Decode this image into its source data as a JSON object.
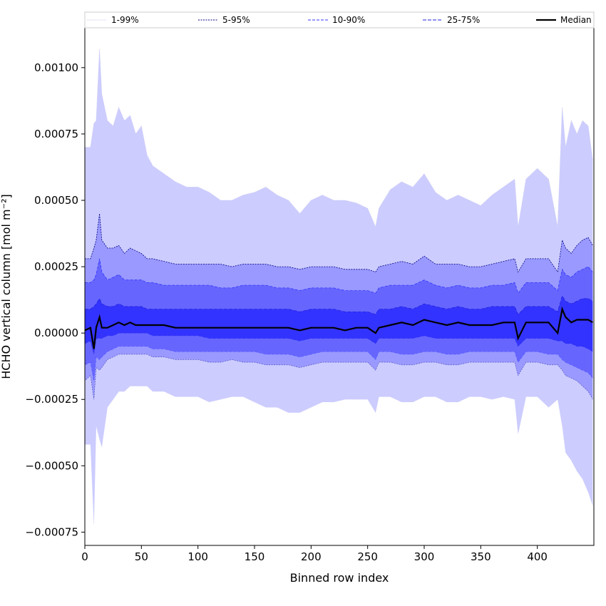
{
  "chart_data": {
    "type": "area",
    "title": "",
    "xlabel": "Binned row index",
    "ylabel": "HCHO vertical column [mol m⁻²]",
    "xlim": [
      0,
      450
    ],
    "ylim": [
      -0.0008,
      0.00115
    ],
    "x_ticks": [
      0,
      50,
      100,
      150,
      200,
      250,
      300,
      350,
      400
    ],
    "x_tick_labels": [
      "0",
      "50",
      "100",
      "150",
      "200",
      "250",
      "300",
      "350",
      "400"
    ],
    "y_ticks": [
      -0.00075,
      -0.0005,
      -0.00025,
      0.0,
      0.00025,
      0.0005,
      0.00075,
      0.001
    ],
    "y_tick_labels": [
      "−0.00075",
      "−0.00050",
      "−0.00025",
      "0.00000",
      "0.00025",
      "0.00050",
      "0.00075",
      "0.00100"
    ],
    "grid": false,
    "legend": {
      "placement": "top",
      "entries": [
        "1-99%",
        "5-95%",
        "10-90%",
        "25-75%",
        "Median"
      ]
    },
    "x": [
      0,
      5,
      8,
      10,
      13,
      15,
      20,
      25,
      30,
      35,
      40,
      45,
      50,
      55,
      60,
      70,
      80,
      90,
      100,
      110,
      120,
      130,
      140,
      150,
      160,
      170,
      180,
      190,
      200,
      210,
      220,
      230,
      240,
      250,
      257,
      260,
      270,
      280,
      290,
      300,
      310,
      320,
      330,
      340,
      350,
      360,
      370,
      380,
      383,
      390,
      400,
      410,
      418,
      422,
      425,
      430,
      435,
      440,
      445,
      449
    ],
    "series": [
      {
        "name": "1-99%",
        "upper": [
          0.0007,
          0.0007,
          0.00079,
          0.0008,
          0.00107,
          0.0009,
          0.0008,
          0.00078,
          0.00085,
          0.0008,
          0.00082,
          0.00075,
          0.00078,
          0.00067,
          0.00063,
          0.0006,
          0.00057,
          0.00055,
          0.00055,
          0.00053,
          0.0005,
          0.0005,
          0.00052,
          0.00053,
          0.00055,
          0.00052,
          0.0005,
          0.00045,
          0.0005,
          0.00052,
          0.0005,
          0.0005,
          0.00049,
          0.00047,
          0.0004,
          0.00047,
          0.00054,
          0.00057,
          0.00055,
          0.0006,
          0.00053,
          0.0005,
          0.00052,
          0.0005,
          0.00048,
          0.00052,
          0.00055,
          0.00058,
          0.0004,
          0.00058,
          0.00062,
          0.00058,
          0.0004,
          0.00085,
          0.0007,
          0.0008,
          0.00075,
          0.0008,
          0.00078,
          0.00065
        ],
        "lower": [
          -0.00042,
          -0.00042,
          -0.00072,
          -0.00035,
          -0.0004,
          -0.00043,
          -0.00028,
          -0.00025,
          -0.00022,
          -0.00022,
          -0.0002,
          -0.0002,
          -0.0002,
          -0.0002,
          -0.00022,
          -0.00022,
          -0.00024,
          -0.00024,
          -0.00024,
          -0.00026,
          -0.00025,
          -0.00024,
          -0.00024,
          -0.00026,
          -0.00028,
          -0.00028,
          -0.0003,
          -0.0003,
          -0.00028,
          -0.00026,
          -0.00026,
          -0.00025,
          -0.00025,
          -0.00025,
          -0.0003,
          -0.00024,
          -0.00024,
          -0.00026,
          -0.00026,
          -0.00024,
          -0.00024,
          -0.00026,
          -0.00026,
          -0.00024,
          -0.00024,
          -0.00025,
          -0.00024,
          -0.00025,
          -0.00038,
          -0.00024,
          -0.00024,
          -0.00028,
          -0.00025,
          -0.00035,
          -0.00045,
          -0.00048,
          -0.00052,
          -0.00055,
          -0.0006,
          -0.00065
        ]
      },
      {
        "name": "5-95%",
        "upper": [
          0.00028,
          0.00028,
          0.00032,
          0.00035,
          0.00045,
          0.00035,
          0.00032,
          0.00032,
          0.00033,
          0.0003,
          0.00032,
          0.00031,
          0.0003,
          0.00028,
          0.00028,
          0.00027,
          0.00026,
          0.00026,
          0.00026,
          0.00026,
          0.00026,
          0.00025,
          0.00026,
          0.00026,
          0.00026,
          0.00025,
          0.00025,
          0.00024,
          0.00025,
          0.00025,
          0.00025,
          0.00024,
          0.00024,
          0.00024,
          0.00023,
          0.00025,
          0.00026,
          0.00027,
          0.00026,
          0.00029,
          0.00026,
          0.00026,
          0.00026,
          0.00025,
          0.00025,
          0.00026,
          0.00027,
          0.00028,
          0.00023,
          0.00028,
          0.00028,
          0.00028,
          0.00023,
          0.00035,
          0.00032,
          0.0003,
          0.00033,
          0.00035,
          0.00036,
          0.00033
        ],
        "lower": [
          -0.00018,
          -0.00016,
          -0.00025,
          -0.00013,
          -0.00014,
          -0.00013,
          -0.0001,
          -9e-05,
          -8e-05,
          -8e-05,
          -8e-05,
          -8e-05,
          -8e-05,
          -8e-05,
          -9e-05,
          -9e-05,
          -0.0001,
          -0.0001,
          -0.0001,
          -0.00011,
          -0.00011,
          -0.0001,
          -0.00011,
          -0.00011,
          -0.00012,
          -0.00012,
          -0.00012,
          -0.00013,
          -0.00012,
          -0.00011,
          -0.00011,
          -0.00011,
          -0.00011,
          -0.00011,
          -0.00014,
          -0.00011,
          -0.00011,
          -0.00012,
          -0.00012,
          -0.00011,
          -0.00011,
          -0.00012,
          -0.00012,
          -0.00011,
          -0.00011,
          -0.00011,
          -0.00011,
          -0.00011,
          -0.00016,
          -0.00011,
          -0.00011,
          -0.00012,
          -0.00012,
          -0.00014,
          -0.00016,
          -0.00017,
          -0.00018,
          -0.0002,
          -0.00022,
          -0.00025
        ]
      },
      {
        "name": "10-90%",
        "upper": [
          0.00019,
          0.00019,
          0.0002,
          0.00022,
          0.00028,
          0.00023,
          0.0002,
          0.00021,
          0.00022,
          0.0002,
          0.0002,
          0.0002,
          0.0002,
          0.00019,
          0.00019,
          0.00018,
          0.00018,
          0.00018,
          0.00018,
          0.00018,
          0.00017,
          0.00017,
          0.00018,
          0.00018,
          0.00018,
          0.00017,
          0.00017,
          0.00016,
          0.00017,
          0.00017,
          0.00017,
          0.00016,
          0.00016,
          0.00016,
          0.00015,
          0.00017,
          0.00018,
          0.00018,
          0.00018,
          0.0002,
          0.00018,
          0.00017,
          0.00018,
          0.00017,
          0.00017,
          0.00018,
          0.00018,
          0.00019,
          0.00015,
          0.00019,
          0.00019,
          0.00019,
          0.00016,
          0.00024,
          0.00022,
          0.00021,
          0.00023,
          0.00024,
          0.00025,
          0.00023
        ],
        "lower": [
          -0.00012,
          -0.00011,
          -0.00018,
          -9e-05,
          -0.0001,
          -9e-05,
          -7e-05,
          -6e-05,
          -5e-05,
          -5e-05,
          -5e-05,
          -5e-05,
          -5e-05,
          -5e-05,
          -6e-05,
          -6e-05,
          -7e-05,
          -7e-05,
          -7e-05,
          -7e-05,
          -7e-05,
          -7e-05,
          -7e-05,
          -7e-05,
          -8e-05,
          -8e-05,
          -8e-05,
          -9e-05,
          -8e-05,
          -7e-05,
          -7e-05,
          -7e-05,
          -7e-05,
          -7e-05,
          -0.0001,
          -7e-05,
          -7e-05,
          -8e-05,
          -8e-05,
          -7e-05,
          -7e-05,
          -8e-05,
          -8e-05,
          -7e-05,
          -7e-05,
          -7e-05,
          -7e-05,
          -7e-05,
          -0.00011,
          -7e-05,
          -7e-05,
          -8e-05,
          -8e-05,
          -0.0001,
          -0.00011,
          -0.00012,
          -0.00013,
          -0.00014,
          -0.00015,
          -0.00017
        ]
      },
      {
        "name": "25-75%",
        "upper": [
          9e-05,
          9e-05,
          0.0001,
          0.00011,
          0.00013,
          0.00011,
          0.0001,
          0.0001,
          0.00011,
          0.0001,
          0.0001,
          0.0001,
          0.0001,
          9e-05,
          9e-05,
          9e-05,
          9e-05,
          9e-05,
          9e-05,
          9e-05,
          9e-05,
          9e-05,
          9e-05,
          9e-05,
          9e-05,
          9e-05,
          9e-05,
          8e-05,
          9e-05,
          9e-05,
          9e-05,
          8e-05,
          8e-05,
          8e-05,
          7e-05,
          9e-05,
          9e-05,
          0.0001,
          9e-05,
          0.00011,
          0.0001,
          9e-05,
          0.0001,
          9e-05,
          9e-05,
          0.0001,
          0.0001,
          0.0001,
          7e-05,
          0.0001,
          0.0001,
          0.0001,
          8e-05,
          0.00014,
          0.00012,
          0.00011,
          0.00012,
          0.00013,
          0.00013,
          0.00012
        ],
        "lower": [
          -4e-05,
          -3e-05,
          -8e-05,
          -2e-05,
          -2e-05,
          -2e-05,
          -1e-05,
          -1e-05,
          0.0,
          0.0,
          0.0,
          0.0,
          0.0,
          0.0,
          -1e-05,
          -1e-05,
          -1e-05,
          -1e-05,
          -1e-05,
          -2e-05,
          -2e-05,
          -2e-05,
          -2e-05,
          -2e-05,
          -2e-05,
          -2e-05,
          -2e-05,
          -3e-05,
          -2e-05,
          -2e-05,
          -2e-05,
          -2e-05,
          -2e-05,
          -2e-05,
          -4e-05,
          -2e-05,
          -2e-05,
          -2e-05,
          -2e-05,
          -1e-05,
          -2e-05,
          -2e-05,
          -2e-05,
          -2e-05,
          -2e-05,
          -2e-05,
          -2e-05,
          -2e-05,
          -5e-05,
          -2e-05,
          -2e-05,
          -2e-05,
          -3e-05,
          -3e-05,
          -4e-05,
          -4e-05,
          -5e-05,
          -5e-05,
          -6e-05,
          -7e-05
        ]
      },
      {
        "name": "Median",
        "values": [
          1e-05,
          2e-05,
          -6e-05,
          2e-05,
          6e-05,
          2e-05,
          2e-05,
          3e-05,
          4e-05,
          3e-05,
          4e-05,
          3e-05,
          3e-05,
          3e-05,
          3e-05,
          3e-05,
          2e-05,
          2e-05,
          2e-05,
          2e-05,
          2e-05,
          2e-05,
          2e-05,
          2e-05,
          2e-05,
          2e-05,
          2e-05,
          1e-05,
          2e-05,
          2e-05,
          2e-05,
          1e-05,
          2e-05,
          2e-05,
          0.0,
          2e-05,
          3e-05,
          4e-05,
          3e-05,
          5e-05,
          4e-05,
          3e-05,
          4e-05,
          3e-05,
          3e-05,
          3e-05,
          4e-05,
          4e-05,
          -2e-05,
          4e-05,
          4e-05,
          4e-05,
          0.0,
          9e-05,
          6e-05,
          4e-05,
          5e-05,
          5e-05,
          5e-05,
          4e-05
        ]
      }
    ]
  },
  "style": {
    "band_colors": [
      "#ccccff",
      "#9999ff",
      "#6666ff",
      "#3333ff"
    ],
    "line_colors": [
      "#c8c8f0",
      "#000080",
      "#3333ff",
      "#2222dd"
    ],
    "median_color": "#000000"
  }
}
